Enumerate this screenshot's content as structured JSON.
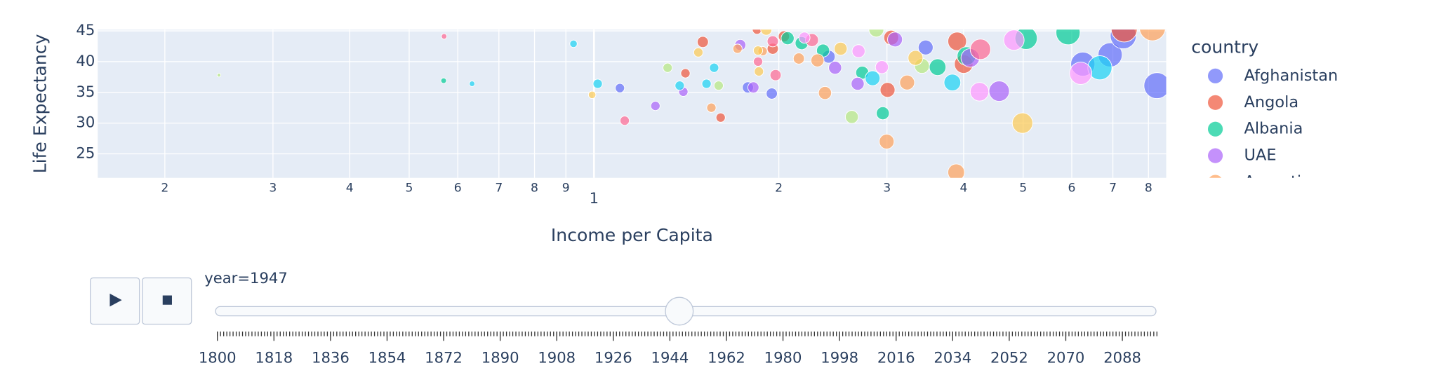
{
  "chart_data": {
    "type": "bubble",
    "x_label": "Income per Capita",
    "y_label": "Life Expectancy",
    "log_x": true,
    "grid": true,
    "xlim": [
      155.5,
      8550
    ],
    "ylim": [
      21.1,
      45.2
    ],
    "xticks": [
      {
        "value": 200,
        "label": "2"
      },
      {
        "value": 300,
        "label": "3"
      },
      {
        "value": 400,
        "label": "4"
      },
      {
        "value": 500,
        "label": "5"
      },
      {
        "value": 600,
        "label": "6"
      },
      {
        "value": 700,
        "label": "7"
      },
      {
        "value": 800,
        "label": "8"
      },
      {
        "value": 900,
        "label": "9"
      },
      {
        "value": 1000,
        "label": "1"
      },
      {
        "value": 2000,
        "label": "2"
      },
      {
        "value": 3000,
        "label": "3"
      },
      {
        "value": 4000,
        "label": "4"
      },
      {
        "value": 5000,
        "label": "5"
      },
      {
        "value": 6000,
        "label": "6"
      },
      {
        "value": 7000,
        "label": "7"
      },
      {
        "value": 8000,
        "label": "8"
      }
    ],
    "yticks": [
      25,
      30,
      35,
      40,
      45
    ],
    "series": [
      {
        "color": "#636EFA",
        "x": [
          1102,
          1781,
          1948,
          2411,
          3469,
          6254,
          6929,
          7278,
          8257
        ],
        "y": [
          35.7,
          35.8,
          34.8,
          40.8,
          42.3,
          39.6,
          41.1,
          44.2,
          36.1
        ],
        "size": [
          5,
          6,
          6,
          7,
          8,
          13,
          13,
          14,
          14
        ]
      },
      {
        "color": "#EF553B",
        "x": [
          1409,
          1504,
          1608,
          1843,
          1955,
          2039,
          3007,
          3049,
          3904,
          4000,
          7304
        ],
        "y": [
          38.1,
          43.2,
          30.9,
          45.2,
          42.1,
          44.1,
          35.4,
          43.9,
          43.3,
          39.6,
          45.3
        ],
        "size": [
          5,
          6,
          5,
          5,
          6,
          6,
          8,
          8,
          10,
          10,
          14
        ]
      },
      {
        "color": "#00CC96",
        "x": [
          569,
          2067,
          2179,
          2361,
          2735,
          2954,
          3628,
          4042,
          5056,
          5917
        ],
        "y": [
          36.9,
          43.8,
          43.0,
          41.8,
          38.2,
          31.6,
          39.1,
          40.9,
          43.8,
          44.7
        ],
        "size": [
          3,
          7,
          7,
          7,
          7,
          7,
          9,
          10,
          12,
          13
        ]
      },
      {
        "color": "#AB63FA",
        "x": [
          1259,
          1398,
          1731,
          1818,
          2470,
          2688,
          3092,
          4100,
          4570
        ],
        "y": [
          32.8,
          35.1,
          42.7,
          35.8,
          39.0,
          36.4,
          43.6,
          40.6,
          35.2
        ],
        "size": [
          5,
          5,
          6,
          6,
          7,
          7,
          8,
          10,
          11
        ]
      },
      {
        "color": "#FFA15A",
        "x": [
          1553,
          1713,
          1882,
          2156,
          2312,
          2378,
          2997,
          3236,
          3890,
          8120
        ],
        "y": [
          32.5,
          42.1,
          41.7,
          40.5,
          40.2,
          34.9,
          27.0,
          36.6,
          22.0,
          45.5
        ],
        "size": [
          5,
          5,
          5,
          6,
          7,
          7,
          8,
          8,
          9,
          14
        ]
      },
      {
        "color": "#19D3F3",
        "x": [
          633,
          926,
          1014,
          1379,
          1525,
          1569,
          2843,
          3834,
          6667
        ],
        "y": [
          36.4,
          42.9,
          36.4,
          36.1,
          36.4,
          39.0,
          37.3,
          36.6,
          39.0
        ],
        "size": [
          3,
          4,
          5,
          5,
          5,
          5,
          8,
          9,
          13
        ]
      },
      {
        "color": "#FF6692",
        "x": [
          570,
          1122,
          1850,
          1955,
          1976,
          2265,
          4260
        ],
        "y": [
          44.1,
          30.4,
          40.0,
          43.3,
          37.8,
          43.5,
          42.0
        ],
        "size": [
          3,
          5,
          5,
          6,
          6,
          7,
          11
        ]
      },
      {
        "color": "#B6E880",
        "x": [
          245,
          1318,
          1596,
          2630,
          2883,
          3421
        ],
        "y": [
          37.8,
          39.0,
          36.1,
          31.0,
          45.2,
          39.3
        ],
        "size": [
          2,
          5,
          5,
          7,
          8,
          8
        ]
      },
      {
        "color": "#FF97FF",
        "x": [
          2202,
          2697,
          2944,
          4245,
          4830,
          6205
        ],
        "y": [
          43.9,
          41.7,
          39.1,
          35.1,
          43.5,
          38.1
        ],
        "size": [
          6,
          7,
          7,
          10,
          11,
          12
        ]
      },
      {
        "color": "#FECB52",
        "x": [
          993,
          1479,
          1850,
          1856,
          1908,
          2522,
          3339,
          4988
        ],
        "y": [
          34.6,
          41.5,
          41.8,
          38.4,
          45.2,
          42.1,
          40.6,
          30.0
        ],
        "size": [
          4,
          5,
          5,
          5,
          6,
          7,
          8,
          11
        ]
      }
    ],
    "legend": {
      "title": "country",
      "items": [
        {
          "name": "Afghanistan",
          "color": "#636EFA"
        },
        {
          "name": "Angola",
          "color": "#EF553B"
        },
        {
          "name": "Albania",
          "color": "#00CC96"
        },
        {
          "name": "UAE",
          "color": "#AB63FA"
        },
        {
          "name": "Argentina",
          "color": "#FFA15A"
        }
      ]
    },
    "slider": {
      "current_label": "year=1947",
      "value": 1947,
      "range": [
        1800,
        2099
      ],
      "minor_step": 1,
      "ticks": [
        1800,
        1818,
        1836,
        1854,
        1872,
        1890,
        1908,
        1926,
        1944,
        1962,
        1980,
        1998,
        2016,
        2034,
        2052,
        2070,
        2088
      ]
    }
  }
}
